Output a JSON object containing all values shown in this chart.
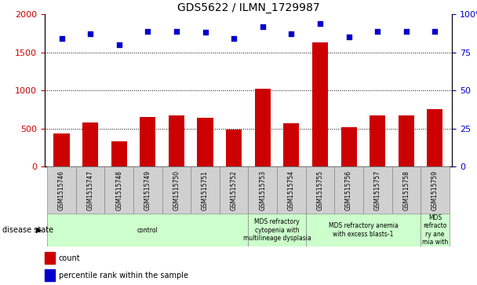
{
  "title": "GDS5622 / ILMN_1729987",
  "samples": [
    "GSM1515746",
    "GSM1515747",
    "GSM1515748",
    "GSM1515749",
    "GSM1515750",
    "GSM1515751",
    "GSM1515752",
    "GSM1515753",
    "GSM1515754",
    "GSM1515755",
    "GSM1515756",
    "GSM1515757",
    "GSM1515758",
    "GSM1515759"
  ],
  "counts": [
    440,
    580,
    330,
    650,
    670,
    640,
    490,
    1020,
    570,
    1630,
    520,
    670,
    670,
    760
  ],
  "percentile_ranks": [
    84,
    87,
    80,
    89,
    89,
    88,
    84,
    92,
    87,
    94,
    85,
    89,
    89,
    89
  ],
  "bar_color": "#cc0000",
  "dot_color": "#0000cc",
  "ylim_left": [
    0,
    2000
  ],
  "ylim_right": [
    0,
    100
  ],
  "yticks_left": [
    0,
    500,
    1000,
    1500,
    2000
  ],
  "yticks_right": [
    0,
    25,
    50,
    75,
    100
  ],
  "ytick_labels_right": [
    "0",
    "25",
    "50",
    "75",
    "100%"
  ],
  "grid_values": [
    500,
    1000,
    1500
  ],
  "disease_state_label": "disease state",
  "legend_count_label": "count",
  "legend_pct_label": "percentile rank within the sample",
  "bg_color": "#ffffff",
  "sample_box_color": "#d0d0d0",
  "disease_box_color": "#ccffcc",
  "group_boundaries": [
    {
      "start": 0,
      "end": 7,
      "label": "control"
    },
    {
      "start": 7,
      "end": 9,
      "label": "MDS refractory\ncytopenia with\nmultilineage dysplasia"
    },
    {
      "start": 9,
      "end": 13,
      "label": "MDS refractory anemia\nwith excess blasts-1"
    },
    {
      "start": 13,
      "end": 14,
      "label": "MDS\nrefracto\nry ane\nmia with"
    }
  ]
}
